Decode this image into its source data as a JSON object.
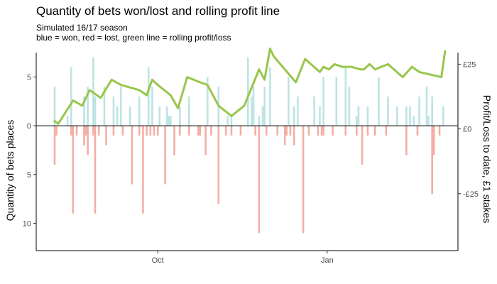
{
  "chart_data": {
    "type": "bar",
    "title": "Quantity of bets won/lost and rolling profit line",
    "subtitle": "Simulated 16/17 season",
    "subtitle2": "blue = won, red = lost, green line = rolling profit/loss",
    "ylabel": "Quantity of bets places",
    "y2label": "Profit/Loss to date, £1 stakes",
    "x_ticks": [
      {
        "label": "Oct",
        "day": 30
      },
      {
        "label": "Jan",
        "day": 122
      }
    ],
    "y_ticks": [
      {
        "label": "5",
        "value": 5
      },
      {
        "label": "0",
        "value": 0
      },
      {
        "label": "5",
        "value": -5
      },
      {
        "label": "10",
        "value": -10
      }
    ],
    "y2_ticks": [
      {
        "label": "£25",
        "value": 25
      },
      {
        "label": "£0",
        "value": 0
      },
      {
        "label": "-£25",
        "value": -25
      }
    ],
    "ylim": [
      -12.8,
      7.5
    ],
    "y2lim": [
      -47,
      29.5
    ],
    "xlim": [
      -36,
      193
    ],
    "grid": false,
    "colors": {
      "won": "#bde3e3",
      "lost": "#f4aea3",
      "profit": "#98c64b"
    },
    "series": [
      {
        "name": "won",
        "x": [
          -26,
          -19,
          -17,
          -10,
          -8,
          -5,
          -4,
          1,
          6,
          8,
          10,
          15,
          20,
          25,
          27,
          31,
          35,
          36,
          37,
          42,
          47,
          57,
          63,
          68,
          70,
          79,
          81,
          82,
          85,
          87,
          88,
          91,
          101,
          104,
          106,
          115,
          118,
          120,
          127,
          132,
          134,
          138,
          139,
          144,
          150,
          155,
          160,
          165,
          167,
          169,
          172,
          176,
          177,
          179,
          185
        ],
        "values": [
          4,
          1,
          6,
          3,
          4,
          7,
          3,
          4,
          3,
          2,
          4,
          2,
          3,
          6,
          4,
          2,
          2,
          1,
          1,
          2,
          3,
          5,
          4,
          1,
          1,
          7,
          3,
          4,
          1,
          2,
          4,
          6,
          5,
          2,
          3,
          3,
          2,
          5,
          5,
          6,
          4,
          1,
          2,
          2,
          5,
          3,
          2,
          2,
          2,
          1,
          3,
          4,
          1,
          3,
          2
        ]
      },
      {
        "name": "lost",
        "x": [
          -26,
          -25,
          -17,
          -16,
          -14,
          -10,
          -9,
          -8,
          -5,
          -4,
          -2,
          2,
          6,
          11,
          16,
          20,
          22,
          24,
          26,
          28,
          30,
          34,
          39,
          42,
          47,
          52,
          53,
          56,
          59,
          63,
          67,
          70,
          75,
          83,
          85,
          89,
          95,
          99,
          100,
          102,
          104,
          109,
          112,
          117,
          119,
          120,
          125,
          132,
          138,
          141,
          144,
          148,
          154,
          165,
          171,
          179,
          180,
          183
        ],
        "values": [
          4,
          1,
          1,
          9,
          1,
          2,
          1,
          3,
          1,
          9,
          1,
          2,
          1,
          1,
          6,
          1,
          9,
          1,
          1,
          1,
          1,
          6,
          3,
          1,
          1,
          1,
          1,
          3,
          1,
          8,
          1,
          1,
          1,
          1,
          11,
          1,
          1,
          2,
          1,
          1,
          2,
          11,
          1,
          1,
          1,
          1,
          1,
          1,
          1,
          4,
          1,
          1,
          1,
          3,
          1,
          7,
          3,
          1
        ]
      },
      {
        "name": "profit",
        "x": [
          -26,
          -24,
          -16,
          -11,
          -7,
          -1,
          5,
          10,
          20,
          24,
          27,
          30,
          37,
          41,
          46,
          53,
          57,
          63,
          70,
          77,
          85,
          88,
          91,
          93,
          105,
          110,
          118,
          120,
          123,
          126,
          130,
          135,
          140,
          142,
          145,
          148,
          155,
          163,
          168,
          172,
          184,
          186
        ],
        "values": [
          3,
          2,
          11,
          9,
          15,
          12,
          19,
          17,
          15,
          13,
          19,
          17,
          13,
          8,
          20,
          18,
          17,
          9,
          5,
          9,
          23,
          19,
          31,
          28,
          18,
          27,
          22,
          24,
          23,
          25,
          24,
          24,
          23,
          23,
          25,
          23,
          25,
          20,
          24,
          22,
          20,
          30
        ]
      }
    ]
  }
}
